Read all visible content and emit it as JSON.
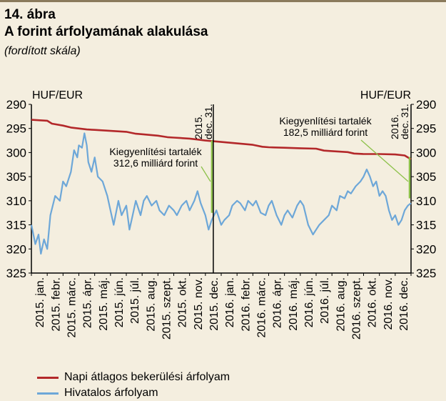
{
  "header": {
    "number": "14. ábra",
    "title": "A forint árfolyamának alakulása",
    "subtitle": "(fordított skála)"
  },
  "colors": {
    "background": "#f4eedf",
    "avg_series": "#b3282a",
    "official_series": "#6da7d8",
    "annotation": "#8dc14a",
    "axis": "#000000"
  },
  "chart_data": {
    "type": "line",
    "y_inverted": true,
    "ylim": [
      290,
      325
    ],
    "y_ticks": [
      290,
      295,
      300,
      305,
      310,
      315,
      320,
      325
    ],
    "ylabel_left": "HUF/EUR",
    "ylabel_right": "HUF/EUR",
    "grid": false,
    "legend_position": "bottom-left",
    "x_categories": [
      "2015. jan.",
      "2015. febr.",
      "2015. márc.",
      "2015. ápr.",
      "2015. máj.",
      "2015. jún.",
      "2015. júl.",
      "2015. aug.",
      "2015. szept.",
      "2015. okt.",
      "2015. nov.",
      "2015. dec.",
      "2016. jan.",
      "2016. febr.",
      "2016. márc.",
      "2016. ápr.",
      "2016. máj.",
      "2016. jún.",
      "2016. júl.",
      "2016. aug.",
      "2016. szept.",
      "2016. okt.",
      "2016. nov.",
      "2016. dec."
    ],
    "series": [
      {
        "name": "Napi átlagos bekerülési árfolyam",
        "color": "#b3282a",
        "points": [
          [
            0,
            293.2
          ],
          [
            1,
            293.4
          ],
          [
            1.3,
            294.0
          ],
          [
            2,
            294.4
          ],
          [
            2.5,
            294.8
          ],
          [
            3.5,
            295.2
          ],
          [
            4,
            295.3
          ],
          [
            5,
            295.5
          ],
          [
            6,
            295.7
          ],
          [
            6.6,
            296.1
          ],
          [
            7,
            296.2
          ],
          [
            8,
            296.5
          ],
          [
            8.6,
            296.8
          ],
          [
            9,
            296.9
          ],
          [
            10,
            297.1
          ],
          [
            10.5,
            297.3
          ],
          [
            11,
            297.5
          ],
          [
            12,
            297.8
          ],
          [
            13,
            298.1
          ],
          [
            14,
            298.4
          ],
          [
            14.6,
            298.8
          ],
          [
            15,
            298.9
          ],
          [
            16,
            299.0
          ],
          [
            17,
            299.1
          ],
          [
            18,
            299.2
          ],
          [
            18.5,
            299.6
          ],
          [
            19,
            299.7
          ],
          [
            20,
            299.9
          ],
          [
            20.4,
            300.2
          ],
          [
            21,
            300.3
          ],
          [
            22,
            300.3
          ],
          [
            23,
            300.4
          ],
          [
            23.6,
            300.6
          ],
          [
            24,
            301.4
          ]
        ]
      },
      {
        "name": "Hivatalos árfolyam",
        "color": "#6da7d8",
        "points": [
          [
            0,
            315
          ],
          [
            0.25,
            319
          ],
          [
            0.45,
            317
          ],
          [
            0.6,
            321
          ],
          [
            0.8,
            318
          ],
          [
            1.0,
            320
          ],
          [
            1.2,
            313
          ],
          [
            1.5,
            309
          ],
          [
            1.8,
            310
          ],
          [
            2.0,
            306
          ],
          [
            2.2,
            307
          ],
          [
            2.5,
            304
          ],
          [
            2.7,
            299.5
          ],
          [
            2.9,
            301
          ],
          [
            3.0,
            298.5
          ],
          [
            3.2,
            299
          ],
          [
            3.35,
            296
          ],
          [
            3.5,
            298.5
          ],
          [
            3.6,
            302
          ],
          [
            3.8,
            304
          ],
          [
            4.0,
            301
          ],
          [
            4.2,
            305
          ],
          [
            4.5,
            306
          ],
          [
            4.8,
            309
          ],
          [
            5.0,
            312
          ],
          [
            5.2,
            315
          ],
          [
            5.5,
            310
          ],
          [
            5.7,
            313
          ],
          [
            6.0,
            311
          ],
          [
            6.2,
            316
          ],
          [
            6.4,
            313
          ],
          [
            6.6,
            310
          ],
          [
            6.9,
            313
          ],
          [
            7.1,
            310
          ],
          [
            7.3,
            309
          ],
          [
            7.6,
            311
          ],
          [
            7.9,
            310
          ],
          [
            8.1,
            312
          ],
          [
            8.4,
            313
          ],
          [
            8.7,
            311
          ],
          [
            9.0,
            312
          ],
          [
            9.2,
            313
          ],
          [
            9.5,
            311
          ],
          [
            9.8,
            310
          ],
          [
            10.0,
            312
          ],
          [
            10.3,
            310
          ],
          [
            10.5,
            308
          ],
          [
            10.7,
            310.5
          ],
          [
            11.0,
            313
          ],
          [
            11.2,
            316
          ],
          [
            11.4,
            314
          ],
          [
            11.7,
            312
          ],
          [
            12.0,
            315
          ],
          [
            12.2,
            314
          ],
          [
            12.5,
            313
          ],
          [
            12.7,
            311
          ],
          [
            13.0,
            310
          ],
          [
            13.2,
            310.5
          ],
          [
            13.5,
            312
          ],
          [
            13.7,
            310
          ],
          [
            14.0,
            311
          ],
          [
            14.2,
            310
          ],
          [
            14.5,
            312.5
          ],
          [
            14.8,
            313
          ],
          [
            15.0,
            311
          ],
          [
            15.2,
            310
          ],
          [
            15.5,
            313
          ],
          [
            15.8,
            315
          ],
          [
            16.0,
            313
          ],
          [
            16.2,
            312
          ],
          [
            16.5,
            313.5
          ],
          [
            16.8,
            311
          ],
          [
            17.0,
            310
          ],
          [
            17.2,
            311
          ],
          [
            17.5,
            315
          ],
          [
            17.8,
            317
          ],
          [
            18.0,
            316
          ],
          [
            18.2,
            315
          ],
          [
            18.5,
            314
          ],
          [
            18.8,
            313
          ],
          [
            19.0,
            311
          ],
          [
            19.3,
            312
          ],
          [
            19.5,
            309
          ],
          [
            19.8,
            309.5
          ],
          [
            20.0,
            308
          ],
          [
            20.2,
            308.5
          ],
          [
            20.5,
            307
          ],
          [
            20.8,
            306
          ],
          [
            21.0,
            305
          ],
          [
            21.2,
            303.5
          ],
          [
            21.4,
            305
          ],
          [
            21.6,
            307
          ],
          [
            21.8,
            306
          ],
          [
            22.0,
            309
          ],
          [
            22.2,
            308
          ],
          [
            22.4,
            309
          ],
          [
            22.6,
            312
          ],
          [
            22.8,
            314
          ],
          [
            23.0,
            313
          ],
          [
            23.2,
            315
          ],
          [
            23.4,
            314
          ],
          [
            23.6,
            312
          ],
          [
            23.8,
            311
          ],
          [
            24.0,
            310.5
          ]
        ]
      }
    ],
    "year_end_markers": [
      {
        "x": 11.5,
        "label": "2015. dec. 31."
      },
      {
        "x": 24,
        "label": "2016. dec. 31."
      }
    ],
    "year_end_jumps": [
      {
        "x": 11.5,
        "from": 312.5,
        "to": 297.5
      },
      {
        "x": 24,
        "from": 309.5,
        "to": 300.9
      }
    ],
    "annotations": [
      {
        "text": "Kiegyenlítési tartalék\n312,6 milliárd forint",
        "target_x": 11.5,
        "target_y": 306
      },
      {
        "text": "Kiegyenlítési tartalék\n182,5 milliárd forint",
        "target_x": 24,
        "target_y": 306
      }
    ]
  },
  "legend": {
    "items": [
      {
        "label": "Napi átlagos bekerülési árfolyam",
        "color": "#b3282a"
      },
      {
        "label": "Hivatalos árfolyam",
        "color": "#6da7d8"
      }
    ]
  }
}
